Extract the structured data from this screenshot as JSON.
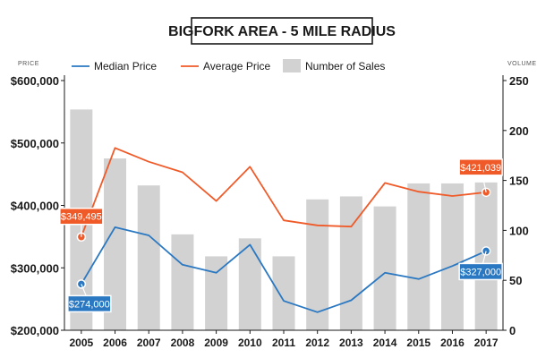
{
  "chart_data": {
    "type": "bar+line",
    "title": "BIGFORK AREA - 5 MILE RADIUS",
    "left_axis_label": "PRICE",
    "right_axis_label": "VOLUME",
    "categories": [
      "2005",
      "2006",
      "2007",
      "2008",
      "2009",
      "2010",
      "2011",
      "2012",
      "2013",
      "2014",
      "2015",
      "2016",
      "2017"
    ],
    "left_axis": {
      "min": 200000,
      "max": 600000,
      "ticks": [
        200000,
        300000,
        400000,
        500000,
        600000
      ],
      "tick_labels": [
        "$200,000",
        "$300,000",
        "$400,000",
        "$500,000",
        "$600,000"
      ]
    },
    "right_axis": {
      "min": 0,
      "max": 250,
      "ticks": [
        0,
        50,
        100,
        150,
        200,
        250
      ],
      "tick_labels": [
        "0",
        "50",
        "100",
        "150",
        "200",
        "250"
      ]
    },
    "series": [
      {
        "name": "Median Price",
        "kind": "line",
        "axis": "left",
        "color": "#2a78c2",
        "values": [
          274000,
          365000,
          352000,
          305000,
          292000,
          337000,
          247000,
          229000,
          248000,
          292000,
          282000,
          303000,
          327000
        ]
      },
      {
        "name": "Average Price",
        "kind": "line",
        "axis": "left",
        "color": "#f05a28",
        "values": [
          349495,
          492000,
          470000,
          453000,
          407000,
          462000,
          376000,
          368000,
          366000,
          436000,
          422000,
          415000,
          421039
        ]
      },
      {
        "name": "Number of Sales",
        "kind": "bar",
        "axis": "right",
        "color": "#d2d2d2",
        "values": [
          221,
          172,
          145,
          96,
          74,
          92,
          74,
          131,
          134,
          124,
          147,
          147,
          148
        ]
      }
    ],
    "annotations": [
      {
        "series": "Average Price",
        "index": 0,
        "label": "$349,495"
      },
      {
        "series": "Average Price",
        "index": 12,
        "label": "$421,039"
      },
      {
        "series": "Median Price",
        "index": 0,
        "label": "$274,000"
      },
      {
        "series": "Median Price",
        "index": 12,
        "label": "$327,000"
      }
    ],
    "legend_position": "top",
    "grid": false
  }
}
